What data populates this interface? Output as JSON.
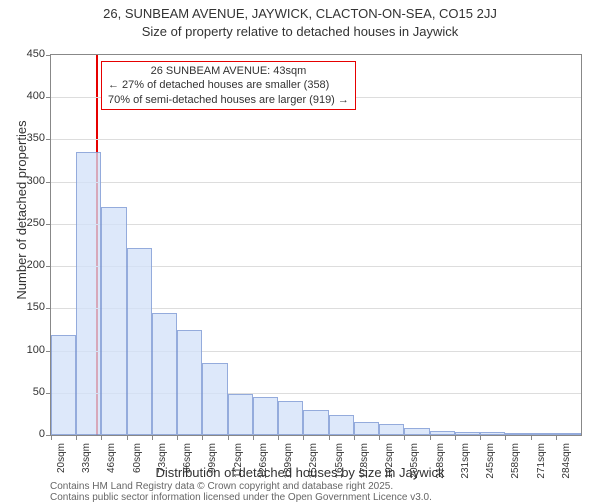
{
  "title_line1": "26, SUNBEAM AVENUE, JAYWICK, CLACTON-ON-SEA, CO15 2JJ",
  "title_line2": "Size of property relative to detached houses in Jaywick",
  "y_axis_label": "Number of detached properties",
  "x_axis_label": "Distribution of detached houses by size in Jaywick",
  "footer_line1": "Contains HM Land Registry data © Crown copyright and database right 2025.",
  "footer_line2": "Contains public sector information licensed under the Open Government Licence v3.0.",
  "callout": {
    "line1": "26 SUNBEAM AVENUE: 43sqm",
    "line2": "← 27% of detached houses are smaller (358)",
    "line3": "70% of semi-detached houses are larger (919) →"
  },
  "chart": {
    "type": "histogram",
    "ylim": [
      0,
      450
    ],
    "ytick_step": 50,
    "bar_fill": "#d2e0f8",
    "bar_border": "#6482c8",
    "grid_color": "#dddddd",
    "axis_color": "#888888",
    "marker_color": "#e60000",
    "marker_value": 43,
    "x_start": 20,
    "x_step": 13,
    "n_bins": 21,
    "values": [
      118,
      335,
      270,
      222,
      145,
      124,
      85,
      48,
      45,
      40,
      30,
      24,
      15,
      13,
      8,
      5,
      4,
      3,
      2,
      1,
      1
    ],
    "x_tick_labels": [
      "20sqm",
      "33sqm",
      "46sqm",
      "60sqm",
      "73sqm",
      "86sqm",
      "99sqm",
      "112sqm",
      "126sqm",
      "139sqm",
      "152sqm",
      "165sqm",
      "178sqm",
      "192sqm",
      "205sqm",
      "218sqm",
      "231sqm",
      "245sqm",
      "258sqm",
      "271sqm",
      "284sqm"
    ],
    "title_fontsize": 13,
    "label_fontsize": 13,
    "tick_fontsize": 11
  }
}
